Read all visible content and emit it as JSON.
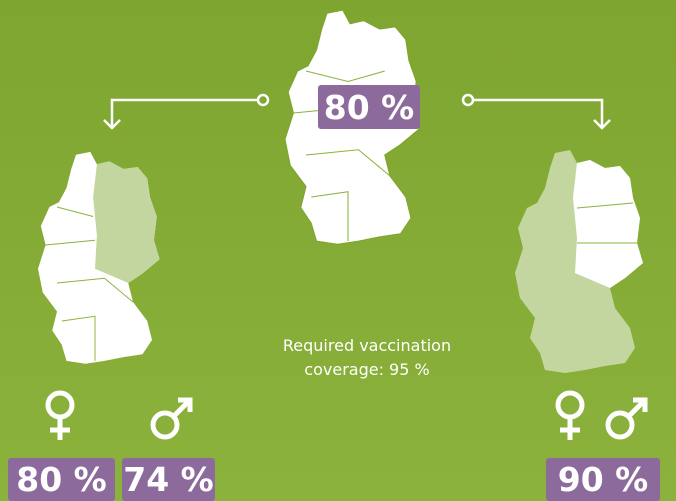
{
  "national": {
    "value": "80 %"
  },
  "left": {
    "female": "80 %",
    "male": "74 %"
  },
  "right": {
    "value": "90 %"
  },
  "note": "Required vaccination coverage: 95 %"
}
